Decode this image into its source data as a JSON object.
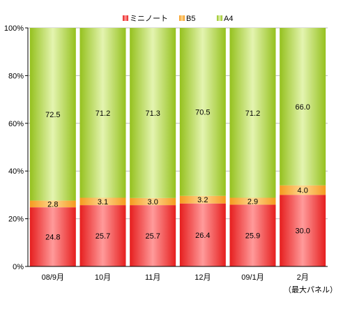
{
  "chart_data": {
    "type": "bar",
    "stacked": true,
    "categories": [
      "08/9月",
      "10月",
      "11月",
      "12月",
      "09/1月",
      "2月"
    ],
    "series": [
      {
        "name": "ミニノート",
        "values": [
          24.8,
          25.7,
          25.7,
          26.4,
          25.9,
          30.0
        ],
        "color": "#ee2a2a"
      },
      {
        "name": "B5",
        "values": [
          2.8,
          3.1,
          3.0,
          3.2,
          2.9,
          4.0
        ],
        "color": "#f7a531"
      },
      {
        "name": "A4",
        "values": [
          72.5,
          71.2,
          71.3,
          70.5,
          71.2,
          66.0
        ],
        "color": "#a3cc2a"
      }
    ],
    "value_labels": [
      [
        "24.8",
        "25.7",
        "25.7",
        "26.4",
        "25.9",
        "30.0"
      ],
      [
        "2.8",
        "3.1",
        "3.0",
        "3.2",
        "2.9",
        "4.0"
      ],
      [
        "72.5",
        "71.2",
        "71.3",
        "70.5",
        "71.2",
        "66.0"
      ]
    ],
    "yticks": [
      "0%",
      "20%",
      "40%",
      "60%",
      "80%",
      "100%"
    ],
    "ylim": [
      0,
      100
    ],
    "legend_position": "top-center",
    "note": "（最大パネル）"
  }
}
